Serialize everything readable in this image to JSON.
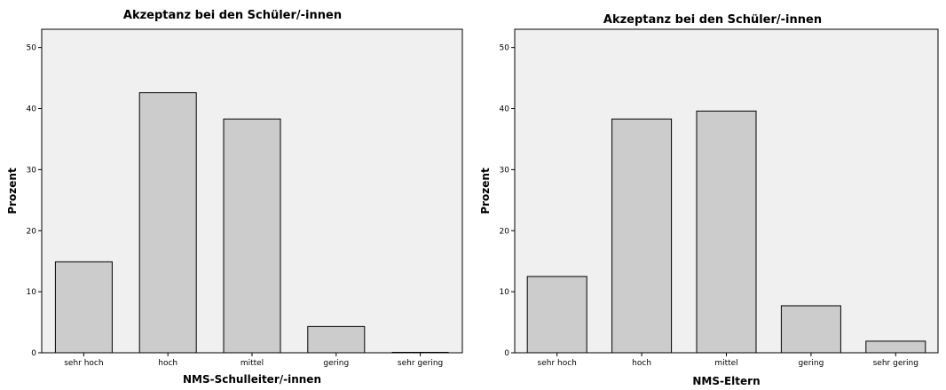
{
  "chart_data": [
    {
      "type": "bar",
      "title": "Akzeptanz bei den Schüler/-innen",
      "xlabel": "NMS-Schulleiter/-innen",
      "ylabel": "Prozent",
      "categories": [
        "sehr hoch",
        "hoch",
        "mittel",
        "gering",
        "sehr gering"
      ],
      "values": [
        14.9,
        42.6,
        38.3,
        4.3,
        0
      ],
      "ylim": [
        0,
        53
      ],
      "yticks": [
        0,
        10,
        20,
        30,
        40,
        50
      ],
      "grid": false,
      "colors": {
        "bar": "#cccccc",
        "plot_background": "#f0f0f0"
      }
    },
    {
      "type": "bar",
      "title": "Akzeptanz bei den Schüler/-innen",
      "xlabel": "NMS-Eltern",
      "ylabel": "Prozent",
      "categories": [
        "sehr hoch",
        "hoch",
        "mittel",
        "gering",
        "sehr gering"
      ],
      "values": [
        12.5,
        38.3,
        39.6,
        7.7,
        1.9
      ],
      "ylim": [
        0,
        53
      ],
      "yticks": [
        0,
        10,
        20,
        30,
        40,
        50
      ],
      "grid": false,
      "colors": {
        "bar": "#cccccc",
        "plot_background": "#f0f0f0"
      }
    }
  ]
}
